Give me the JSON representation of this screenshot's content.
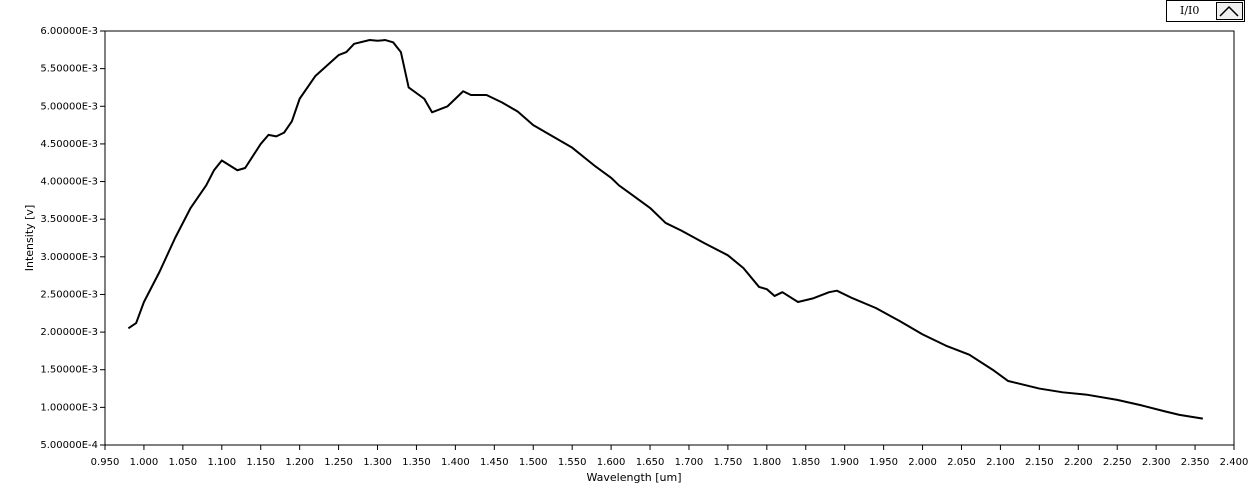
{
  "chart_data": {
    "type": "line",
    "xlabel": "Wavelength [um]",
    "ylabel": "Intensity [v]",
    "x": [
      0.98,
      0.99,
      1.0,
      1.02,
      1.04,
      1.06,
      1.08,
      1.09,
      1.1,
      1.12,
      1.13,
      1.15,
      1.16,
      1.17,
      1.18,
      1.19,
      1.2,
      1.22,
      1.25,
      1.26,
      1.27,
      1.29,
      1.3,
      1.31,
      1.32,
      1.33,
      1.34,
      1.36,
      1.37,
      1.39,
      1.41,
      1.42,
      1.44,
      1.46,
      1.48,
      1.5,
      1.52,
      1.55,
      1.58,
      1.6,
      1.61,
      1.63,
      1.65,
      1.67,
      1.69,
      1.72,
      1.75,
      1.77,
      1.79,
      1.8,
      1.81,
      1.82,
      1.84,
      1.86,
      1.88,
      1.89,
      1.91,
      1.94,
      1.97,
      2.0,
      2.03,
      2.06,
      2.09,
      2.11,
      2.15,
      2.18,
      2.21,
      2.25,
      2.28,
      2.31,
      2.33,
      2.36
    ],
    "series": [
      {
        "name": "I/I0",
        "color": "#000000",
        "values": [
          0.00205,
          0.00212,
          0.0024,
          0.0028,
          0.00325,
          0.00365,
          0.00395,
          0.00415,
          0.00428,
          0.00415,
          0.00418,
          0.0045,
          0.00462,
          0.0046,
          0.00465,
          0.0048,
          0.0051,
          0.0054,
          0.00568,
          0.00572,
          0.00583,
          0.00588,
          0.00587,
          0.00588,
          0.00585,
          0.00572,
          0.00525,
          0.0051,
          0.00492,
          0.005,
          0.0052,
          0.00515,
          0.00515,
          0.00505,
          0.00493,
          0.00475,
          0.00463,
          0.00445,
          0.0042,
          0.00405,
          0.00395,
          0.0038,
          0.00365,
          0.00345,
          0.00335,
          0.00318,
          0.00302,
          0.00285,
          0.0026,
          0.00257,
          0.00248,
          0.00253,
          0.0024,
          0.00245,
          0.00253,
          0.00255,
          0.00245,
          0.00232,
          0.00215,
          0.00197,
          0.00182,
          0.0017,
          0.0015,
          0.00135,
          0.00125,
          0.0012,
          0.00117,
          0.0011,
          0.00103,
          0.00095,
          0.0009,
          0.00085
        ]
      }
    ],
    "xlim": [
      0.95,
      2.4
    ],
    "xticks": [
      {
        "value": 0.95,
        "label": "0.950"
      },
      {
        "value": 1.0,
        "label": "1.000"
      },
      {
        "value": 1.05,
        "label": "1.050"
      },
      {
        "value": 1.1,
        "label": "1.100"
      },
      {
        "value": 1.15,
        "label": "1.150"
      },
      {
        "value": 1.2,
        "label": "1.200"
      },
      {
        "value": 1.25,
        "label": "1.250"
      },
      {
        "value": 1.3,
        "label": "1.300"
      },
      {
        "value": 1.35,
        "label": "1.350"
      },
      {
        "value": 1.4,
        "label": "1.400"
      },
      {
        "value": 1.45,
        "label": "1.450"
      },
      {
        "value": 1.5,
        "label": "1.500"
      },
      {
        "value": 1.55,
        "label": "1.550"
      },
      {
        "value": 1.6,
        "label": "1.600"
      },
      {
        "value": 1.65,
        "label": "1.650"
      },
      {
        "value": 1.7,
        "label": "1.700"
      },
      {
        "value": 1.75,
        "label": "1.750"
      },
      {
        "value": 1.8,
        "label": "1.800"
      },
      {
        "value": 1.85,
        "label": "1.850"
      },
      {
        "value": 1.9,
        "label": "1.900"
      },
      {
        "value": 1.95,
        "label": "1.950"
      },
      {
        "value": 2.0,
        "label": "2.000"
      },
      {
        "value": 2.05,
        "label": "2.050"
      },
      {
        "value": 2.1,
        "label": "2.100"
      },
      {
        "value": 2.15,
        "label": "2.150"
      },
      {
        "value": 2.2,
        "label": "2.200"
      },
      {
        "value": 2.25,
        "label": "2.250"
      },
      {
        "value": 2.3,
        "label": "2.300"
      },
      {
        "value": 2.35,
        "label": "2.350"
      },
      {
        "value": 2.4,
        "label": "2.400"
      }
    ],
    "ylim": [
      0.0005,
      0.006
    ],
    "yticks": [
      {
        "value": 0.0005,
        "label": "5.00000E-4"
      },
      {
        "value": 0.001,
        "label": "1.00000E-3"
      },
      {
        "value": 0.0015,
        "label": "1.50000E-3"
      },
      {
        "value": 0.002,
        "label": "2.00000E-3"
      },
      {
        "value": 0.0025,
        "label": "2.50000E-3"
      },
      {
        "value": 0.003,
        "label": "3.00000E-3"
      },
      {
        "value": 0.0035,
        "label": "3.50000E-3"
      },
      {
        "value": 0.004,
        "label": "4.00000E-3"
      },
      {
        "value": 0.0045,
        "label": "4.50000E-3"
      },
      {
        "value": 0.005,
        "label": "5.00000E-3"
      },
      {
        "value": 0.0055,
        "label": "5.50000E-3"
      },
      {
        "value": 0.006,
        "label": "6.00000E-3"
      }
    ],
    "grid": false
  }
}
